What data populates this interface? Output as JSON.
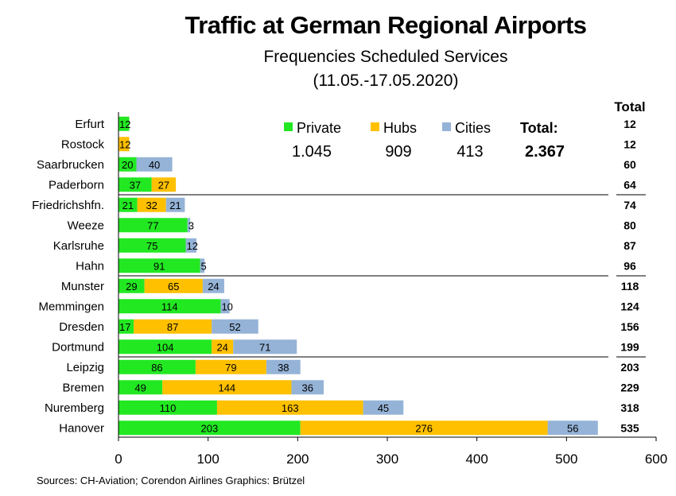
{
  "chart_data": {
    "type": "bar",
    "orientation": "horizontal",
    "stacked": true,
    "title": "Traffic at German Regional Airports",
    "subtitle": "Frequencies Scheduled Services",
    "date_range": "(11.05.-17.05.2020)",
    "source": "Sources: CH-Aviation; Corendon Airlines  Graphics: Brützel",
    "total_header": "Total",
    "categories": [
      "Erfurt",
      "Rostock",
      "Saarbrucken",
      "Paderborn",
      "Friedrichshfn.",
      "Weeze",
      "Karlsruhe",
      "Hahn",
      "Munster",
      "Memmingen",
      "Dresden",
      "Dortmund",
      "Leipzig",
      "Bremen",
      "Nuremberg",
      "Hanover"
    ],
    "series": [
      {
        "name": "Private",
        "color": "#22e822",
        "values": [
          12,
          0,
          20,
          37,
          21,
          77,
          75,
          91,
          29,
          114,
          17,
          104,
          86,
          49,
          110,
          203
        ],
        "labels": [
          "12",
          "",
          "20",
          "37",
          "21",
          "77",
          "75",
          "91",
          "29",
          "114",
          "17",
          "104",
          "86",
          "49",
          "110",
          "203"
        ]
      },
      {
        "name": "Hubs",
        "color": "#ffc000",
        "values": [
          0,
          12,
          0,
          27,
          32,
          0,
          0,
          0,
          65,
          0,
          87,
          24,
          79,
          144,
          163,
          276
        ],
        "labels": [
          "",
          "12",
          "",
          "27",
          "32",
          "",
          "",
          "",
          "65",
          "",
          "87",
          "24",
          "79",
          "144",
          "163",
          "276"
        ]
      },
      {
        "name": "Cities",
        "color": "#95b3d7",
        "values": [
          0,
          0,
          40,
          0,
          21,
          3,
          12,
          5,
          24,
          10,
          52,
          71,
          38,
          36,
          45,
          56
        ],
        "labels": [
          "",
          "",
          "40",
          "",
          "21",
          "3",
          "12",
          "5",
          "24",
          "10",
          "52",
          "71",
          "38",
          "36",
          "45",
          "56"
        ]
      }
    ],
    "totals": [
      "12",
      "12",
      "60",
      "64",
      "74",
      "80",
      "87",
      "96",
      "118",
      "124",
      "156",
      "199",
      "203",
      "229",
      "318",
      "535"
    ],
    "xlim": [
      0,
      600
    ],
    "xticks": [
      "0",
      "100",
      "200",
      "300",
      "400",
      "500",
      "600"
    ],
    "legend": {
      "position": "top-right",
      "values": [
        "1.045",
        "909",
        "413"
      ],
      "total_label": "Total:",
      "total_value": "2.367"
    },
    "separators_after": [
      "Paderborn",
      "Hahn",
      "Dortmund"
    ],
    "grid": false
  }
}
